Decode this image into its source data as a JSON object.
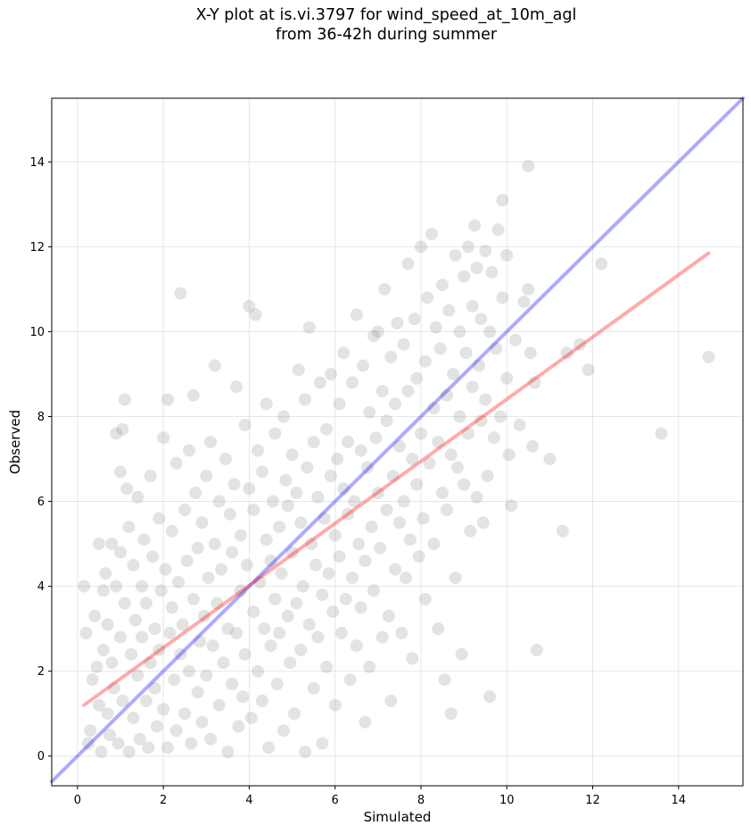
{
  "chart_data": {
    "type": "scatter",
    "title": "X-Y plot at is.vi.3797 for wind_speed_at_10m_agl\nfrom 36-42h during summer",
    "xlabel": "Simulated",
    "ylabel": "Observed",
    "xlim": [
      -0.6,
      15.5
    ],
    "ylim": [
      -0.7,
      15.5
    ],
    "xticks": [
      0,
      2,
      4,
      6,
      8,
      10,
      12,
      14
    ],
    "yticks": [
      0,
      2,
      4,
      6,
      8,
      10,
      12,
      14
    ],
    "grid": true,
    "point_color": "#808080",
    "identity_line": {
      "color": "#0000ff",
      "from": [
        -0.6,
        -0.6
      ],
      "to": [
        15.5,
        15.5
      ]
    },
    "fit_line": {
      "color": "#ff0000",
      "from": [
        0.15,
        1.2
      ],
      "to": [
        14.7,
        11.85
      ]
    },
    "series": [
      {
        "points": [
          [
            0.15,
            4.0
          ],
          [
            0.2,
            2.9
          ],
          [
            0.25,
            0.3
          ],
          [
            0.3,
            0.6
          ],
          [
            0.35,
            1.8
          ],
          [
            0.4,
            3.3
          ],
          [
            0.45,
            2.1
          ],
          [
            0.5,
            5.0
          ],
          [
            0.5,
            1.2
          ],
          [
            0.55,
            0.1
          ],
          [
            0.6,
            3.9
          ],
          [
            0.6,
            2.5
          ],
          [
            0.65,
            4.3
          ],
          [
            0.7,
            1.0
          ],
          [
            0.7,
            3.1
          ],
          [
            0.75,
            0.5
          ],
          [
            0.8,
            5.0
          ],
          [
            0.8,
            2.2
          ],
          [
            0.85,
            1.6
          ],
          [
            0.9,
            4.0
          ],
          [
            0.9,
            7.6
          ],
          [
            0.95,
            0.3
          ],
          [
            1.0,
            6.7
          ],
          [
            1.0,
            2.8
          ],
          [
            1.0,
            4.8
          ],
          [
            1.05,
            7.7
          ],
          [
            1.05,
            1.3
          ],
          [
            1.1,
            8.4
          ],
          [
            1.1,
            3.6
          ],
          [
            1.15,
            6.3
          ],
          [
            1.2,
            0.1
          ],
          [
            1.2,
            5.4
          ],
          [
            1.25,
            2.4
          ],
          [
            1.3,
            4.5
          ],
          [
            1.3,
            0.9
          ],
          [
            1.35,
            3.2
          ],
          [
            1.4,
            1.9
          ],
          [
            1.4,
            6.1
          ],
          [
            1.45,
            0.4
          ],
          [
            1.5,
            2.8
          ],
          [
            1.5,
            4.0
          ],
          [
            1.55,
            5.1
          ],
          [
            1.6,
            1.3
          ],
          [
            1.6,
            3.6
          ],
          [
            1.65,
            0.2
          ],
          [
            1.7,
            2.2
          ],
          [
            1.7,
            6.6
          ],
          [
            1.75,
            4.7
          ],
          [
            1.8,
            1.6
          ],
          [
            1.8,
            3.0
          ],
          [
            1.85,
            0.7
          ],
          [
            1.9,
            5.6
          ],
          [
            1.9,
            2.5
          ],
          [
            1.95,
            3.9
          ],
          [
            2.0,
            7.5
          ],
          [
            2.0,
            1.1
          ],
          [
            2.05,
            4.4
          ],
          [
            2.1,
            0.2
          ],
          [
            2.1,
            8.4
          ],
          [
            2.15,
            2.9
          ],
          [
            2.2,
            3.5
          ],
          [
            2.2,
            5.3
          ],
          [
            2.25,
            1.8
          ],
          [
            2.3,
            0.6
          ],
          [
            2.3,
            6.9
          ],
          [
            2.35,
            4.1
          ],
          [
            2.4,
            10.9
          ],
          [
            2.4,
            2.4
          ],
          [
            2.45,
            3.1
          ],
          [
            2.5,
            1.0
          ],
          [
            2.5,
            5.8
          ],
          [
            2.55,
            4.6
          ],
          [
            2.6,
            7.2
          ],
          [
            2.6,
            2.0
          ],
          [
            2.65,
            0.3
          ],
          [
            2.7,
            3.7
          ],
          [
            2.7,
            8.5
          ],
          [
            2.75,
            6.2
          ],
          [
            2.8,
            1.5
          ],
          [
            2.8,
            4.9
          ],
          [
            2.85,
            2.7
          ],
          [
            2.9,
            0.8
          ],
          [
            2.9,
            5.5
          ],
          [
            2.95,
            3.3
          ],
          [
            3.0,
            6.6
          ],
          [
            3.0,
            1.9
          ],
          [
            3.05,
            4.2
          ],
          [
            3.1,
            7.4
          ],
          [
            3.1,
            0.4
          ],
          [
            3.15,
            2.6
          ],
          [
            3.2,
            9.2
          ],
          [
            3.2,
            5.0
          ],
          [
            3.25,
            3.6
          ],
          [
            3.3,
            1.2
          ],
          [
            3.3,
            6.0
          ],
          [
            3.35,
            4.4
          ],
          [
            3.4,
            2.2
          ],
          [
            3.45,
            7.0
          ],
          [
            3.5,
            0.1
          ],
          [
            3.5,
            3.0
          ],
          [
            3.55,
            5.7
          ],
          [
            3.6,
            1.7
          ],
          [
            3.6,
            4.8
          ],
          [
            3.65,
            6.4
          ],
          [
            3.7,
            2.9
          ],
          [
            3.7,
            8.7
          ],
          [
            3.75,
            0.7
          ],
          [
            3.8,
            3.9
          ],
          [
            3.8,
            5.2
          ],
          [
            3.85,
            1.4
          ],
          [
            3.9,
            7.8
          ],
          [
            3.9,
            2.4
          ],
          [
            3.95,
            4.5
          ],
          [
            4.0,
            6.3
          ],
          [
            4.0,
            10.6
          ],
          [
            4.05,
            0.9
          ],
          [
            4.1,
            3.4
          ],
          [
            4.1,
            5.8
          ],
          [
            4.15,
            10.4
          ],
          [
            4.2,
            2.0
          ],
          [
            4.2,
            7.2
          ],
          [
            4.25,
            4.1
          ],
          [
            4.3,
            1.3
          ],
          [
            4.3,
            6.7
          ],
          [
            4.35,
            3.0
          ],
          [
            4.4,
            8.3
          ],
          [
            4.4,
            5.1
          ],
          [
            4.45,
            0.2
          ],
          [
            4.5,
            2.6
          ],
          [
            4.5,
            4.6
          ],
          [
            4.55,
            6.0
          ],
          [
            4.6,
            3.7
          ],
          [
            4.6,
            7.6
          ],
          [
            4.65,
            1.7
          ],
          [
            4.7,
            5.4
          ],
          [
            4.7,
            2.9
          ],
          [
            4.75,
            4.3
          ],
          [
            4.8,
            8.0
          ],
          [
            4.8,
            0.6
          ],
          [
            4.85,
            6.5
          ],
          [
            4.9,
            3.3
          ],
          [
            4.9,
            5.9
          ],
          [
            4.95,
            2.2
          ],
          [
            5.0,
            4.8
          ],
          [
            5.0,
            7.1
          ],
          [
            5.05,
            1.0
          ],
          [
            5.1,
            6.2
          ],
          [
            5.1,
            3.6
          ],
          [
            5.15,
            9.1
          ],
          [
            5.2,
            5.5
          ],
          [
            5.2,
            2.5
          ],
          [
            5.25,
            4.0
          ],
          [
            5.3,
            8.4
          ],
          [
            5.3,
            0.1
          ],
          [
            5.35,
            6.8
          ],
          [
            5.4,
            3.1
          ],
          [
            5.4,
            10.1
          ],
          [
            5.45,
            5.0
          ],
          [
            5.5,
            1.6
          ],
          [
            5.5,
            7.4
          ],
          [
            5.55,
            4.5
          ],
          [
            5.6,
            2.8
          ],
          [
            5.6,
            6.1
          ],
          [
            5.65,
            8.8
          ],
          [
            5.7,
            3.8
          ],
          [
            5.7,
            0.3
          ],
          [
            5.75,
            5.6
          ],
          [
            5.8,
            7.7
          ],
          [
            5.8,
            2.1
          ],
          [
            5.85,
            4.3
          ],
          [
            5.9,
            6.6
          ],
          [
            5.9,
            9.0
          ],
          [
            5.95,
            3.4
          ],
          [
            6.0,
            5.2
          ],
          [
            6.0,
            1.2
          ],
          [
            6.05,
            7.0
          ],
          [
            6.1,
            4.7
          ],
          [
            6.1,
            8.3
          ],
          [
            6.15,
            2.9
          ],
          [
            6.2,
            6.3
          ],
          [
            6.2,
            9.5
          ],
          [
            6.25,
            3.7
          ],
          [
            6.3,
            5.7
          ],
          [
            6.3,
            7.4
          ],
          [
            6.35,
            1.8
          ],
          [
            6.4,
            4.2
          ],
          [
            6.4,
            8.8
          ],
          [
            6.45,
            6.0
          ],
          [
            6.5,
            2.6
          ],
          [
            6.5,
            10.4
          ],
          [
            6.55,
            5.0
          ],
          [
            6.6,
            7.2
          ],
          [
            6.6,
            3.5
          ],
          [
            6.65,
            9.2
          ],
          [
            6.7,
            4.6
          ],
          [
            6.7,
            0.8
          ],
          [
            6.75,
            6.8
          ],
          [
            6.8,
            8.1
          ],
          [
            6.8,
            2.1
          ],
          [
            6.85,
            5.4
          ],
          [
            6.9,
            9.9
          ],
          [
            6.9,
            3.9
          ],
          [
            6.95,
            7.5
          ],
          [
            7.0,
            6.2
          ],
          [
            7.0,
            10.0
          ],
          [
            7.05,
            4.9
          ],
          [
            7.1,
            2.8
          ],
          [
            7.1,
            8.6
          ],
          [
            7.15,
            11.0
          ],
          [
            7.2,
            5.8
          ],
          [
            7.2,
            7.9
          ],
          [
            7.25,
            3.3
          ],
          [
            7.3,
            9.4
          ],
          [
            7.3,
            1.3
          ],
          [
            7.35,
            6.6
          ],
          [
            7.4,
            8.3
          ],
          [
            7.4,
            4.4
          ],
          [
            7.45,
            10.2
          ],
          [
            7.5,
            5.5
          ],
          [
            7.5,
            7.3
          ],
          [
            7.55,
            2.9
          ],
          [
            7.6,
            9.7
          ],
          [
            7.6,
            6.0
          ],
          [
            7.65,
            4.2
          ],
          [
            7.7,
            8.6
          ],
          [
            7.7,
            11.6
          ],
          [
            7.75,
            5.1
          ],
          [
            7.8,
            7.0
          ],
          [
            7.8,
            2.3
          ],
          [
            7.85,
            10.3
          ],
          [
            7.9,
            6.4
          ],
          [
            7.9,
            8.9
          ],
          [
            7.95,
            4.7
          ],
          [
            8.0,
            12.0
          ],
          [
            8.0,
            7.6
          ],
          [
            8.05,
            5.6
          ],
          [
            8.1,
            9.3
          ],
          [
            8.1,
            3.7
          ],
          [
            8.15,
            10.8
          ],
          [
            8.2,
            6.9
          ],
          [
            8.25,
            12.3
          ],
          [
            8.3,
            8.2
          ],
          [
            8.3,
            5.0
          ],
          [
            8.35,
            10.1
          ],
          [
            8.4,
            7.4
          ],
          [
            8.4,
            3.0
          ],
          [
            8.45,
            9.6
          ],
          [
            8.5,
            6.2
          ],
          [
            8.5,
            11.1
          ],
          [
            8.55,
            1.8
          ],
          [
            8.6,
            8.5
          ],
          [
            8.6,
            5.8
          ],
          [
            8.65,
            10.5
          ],
          [
            8.7,
            7.1
          ],
          [
            8.7,
            1.0
          ],
          [
            8.75,
            9.0
          ],
          [
            8.8,
            11.8
          ],
          [
            8.8,
            4.2
          ],
          [
            8.85,
            6.8
          ],
          [
            8.9,
            10.0
          ],
          [
            8.9,
            8.0
          ],
          [
            8.95,
            2.4
          ],
          [
            9.0,
            11.3
          ],
          [
            9.0,
            6.4
          ],
          [
            9.05,
            9.5
          ],
          [
            9.1,
            12.0
          ],
          [
            9.1,
            7.6
          ],
          [
            9.15,
            5.3
          ],
          [
            9.2,
            10.6
          ],
          [
            9.2,
            8.7
          ],
          [
            9.25,
            12.5
          ],
          [
            9.3,
            6.1
          ],
          [
            9.3,
            11.5
          ],
          [
            9.35,
            9.2
          ],
          [
            9.4,
            7.9
          ],
          [
            9.4,
            10.3
          ],
          [
            9.45,
            5.5
          ],
          [
            9.5,
            11.9
          ],
          [
            9.5,
            8.4
          ],
          [
            9.55,
            6.6
          ],
          [
            9.6,
            10.0
          ],
          [
            9.6,
            1.4
          ],
          [
            9.65,
            11.4
          ],
          [
            9.7,
            7.5
          ],
          [
            9.75,
            9.6
          ],
          [
            9.8,
            12.4
          ],
          [
            9.85,
            8.0
          ],
          [
            9.9,
            13.1
          ],
          [
            9.9,
            10.8
          ],
          [
            10.0,
            8.9
          ],
          [
            10.0,
            11.8
          ],
          [
            10.05,
            7.1
          ],
          [
            10.1,
            5.9
          ],
          [
            10.2,
            9.8
          ],
          [
            10.3,
            7.8
          ],
          [
            10.4,
            10.7
          ],
          [
            10.5,
            13.9
          ],
          [
            10.5,
            11.0
          ],
          [
            10.55,
            9.5
          ],
          [
            10.6,
            7.3
          ],
          [
            10.65,
            8.8
          ],
          [
            10.7,
            2.5
          ],
          [
            11.0,
            7.0
          ],
          [
            11.3,
            5.3
          ],
          [
            11.4,
            9.5
          ],
          [
            11.7,
            9.7
          ],
          [
            11.9,
            9.1
          ],
          [
            12.2,
            11.6
          ],
          [
            13.6,
            7.6
          ],
          [
            14.7,
            9.4
          ]
        ]
      }
    ]
  }
}
